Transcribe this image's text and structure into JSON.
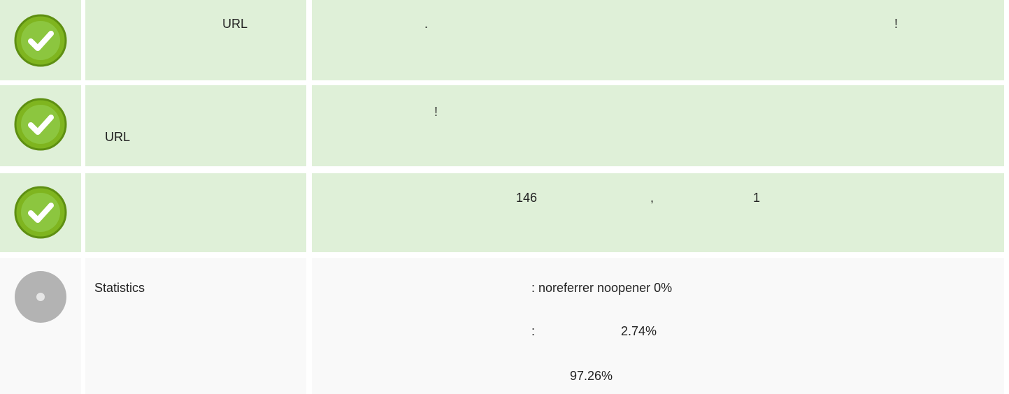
{
  "rows": [
    {
      "label": [
        "URL"
      ],
      "content": [
        ".",
        "!"
      ]
    },
    {
      "label": [
        "URL"
      ],
      "content": [
        "!"
      ]
    },
    {
      "label": [],
      "content": [
        "146",
        ",",
        "1"
      ]
    },
    {
      "label": [
        "Statistics"
      ],
      "content": [
        ": noreferrer noopener 0%",
        ":",
        "2.74%",
        "97.26%"
      ]
    }
  ]
}
